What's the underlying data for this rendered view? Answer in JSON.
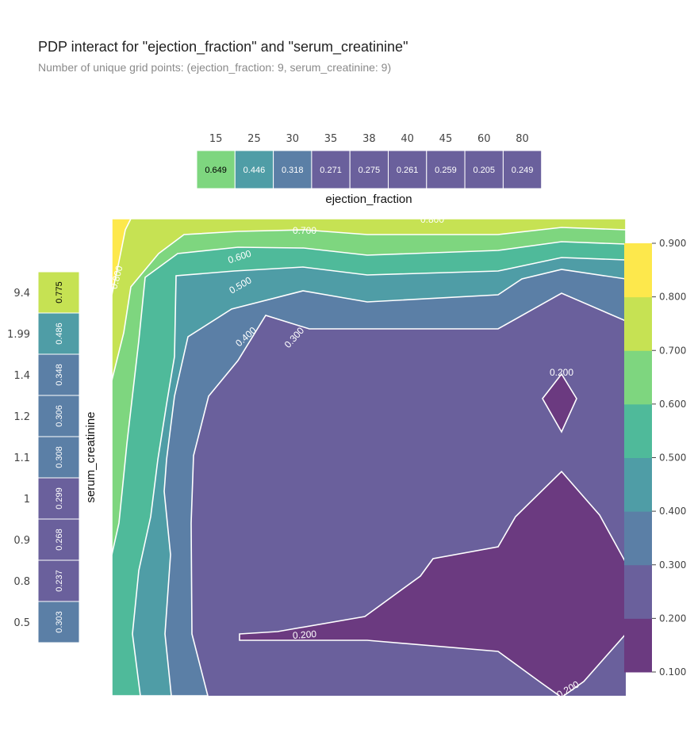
{
  "title": "PDP interact for \"ejection_fraction\" and \"serum_creatinine\"",
  "subtitle": "Number of unique grid points: (ejection_fraction: 9, serum_creatinine: 9)",
  "colors": {
    "viridis": [
      "#6b3a80",
      "#6a609c",
      "#5b7fa6",
      "#4f9da6",
      "#4fba9a",
      "#7ed67f",
      "#c6e253",
      "#fde84c"
    ],
    "contour_line": "#ffffff",
    "cell_border": "#ffffff"
  },
  "chart_data": [
    {
      "type": "heatmap",
      "name_role": "top-marginal",
      "xlabel": "ejection_fraction",
      "categories": [
        "15",
        "25",
        "30",
        "35",
        "38",
        "40",
        "45",
        "60",
        "80"
      ],
      "values": [
        0.649,
        0.446,
        0.318,
        0.271,
        0.275,
        0.261,
        0.259,
        0.205,
        0.249
      ]
    },
    {
      "type": "heatmap",
      "name_role": "left-marginal",
      "ylabel": "serum_creatinine",
      "categories": [
        "9.4",
        "1.99",
        "1.4",
        "1.2",
        "1.1",
        "1",
        "0.9",
        "0.8",
        "0.5"
      ],
      "values": [
        0.775,
        0.486,
        0.348,
        0.306,
        0.308,
        0.299,
        0.268,
        0.237,
        0.303
      ]
    },
    {
      "type": "heatmap",
      "name_role": "contour",
      "contour_levels": [
        0.1,
        0.2,
        0.3,
        0.4,
        0.5,
        0.6,
        0.7,
        0.8,
        0.9
      ],
      "contour_labels": [
        "0.200",
        "0.300",
        "0.400",
        "0.500",
        "0.600",
        "0.700",
        "0.800"
      ],
      "colorbar": {
        "range": [
          0.1,
          0.9
        ],
        "ticks": [
          "0.900",
          "0.800",
          "0.700",
          "0.600",
          "0.500",
          "0.400",
          "0.300",
          "0.200",
          "0.100"
        ]
      }
    }
  ]
}
